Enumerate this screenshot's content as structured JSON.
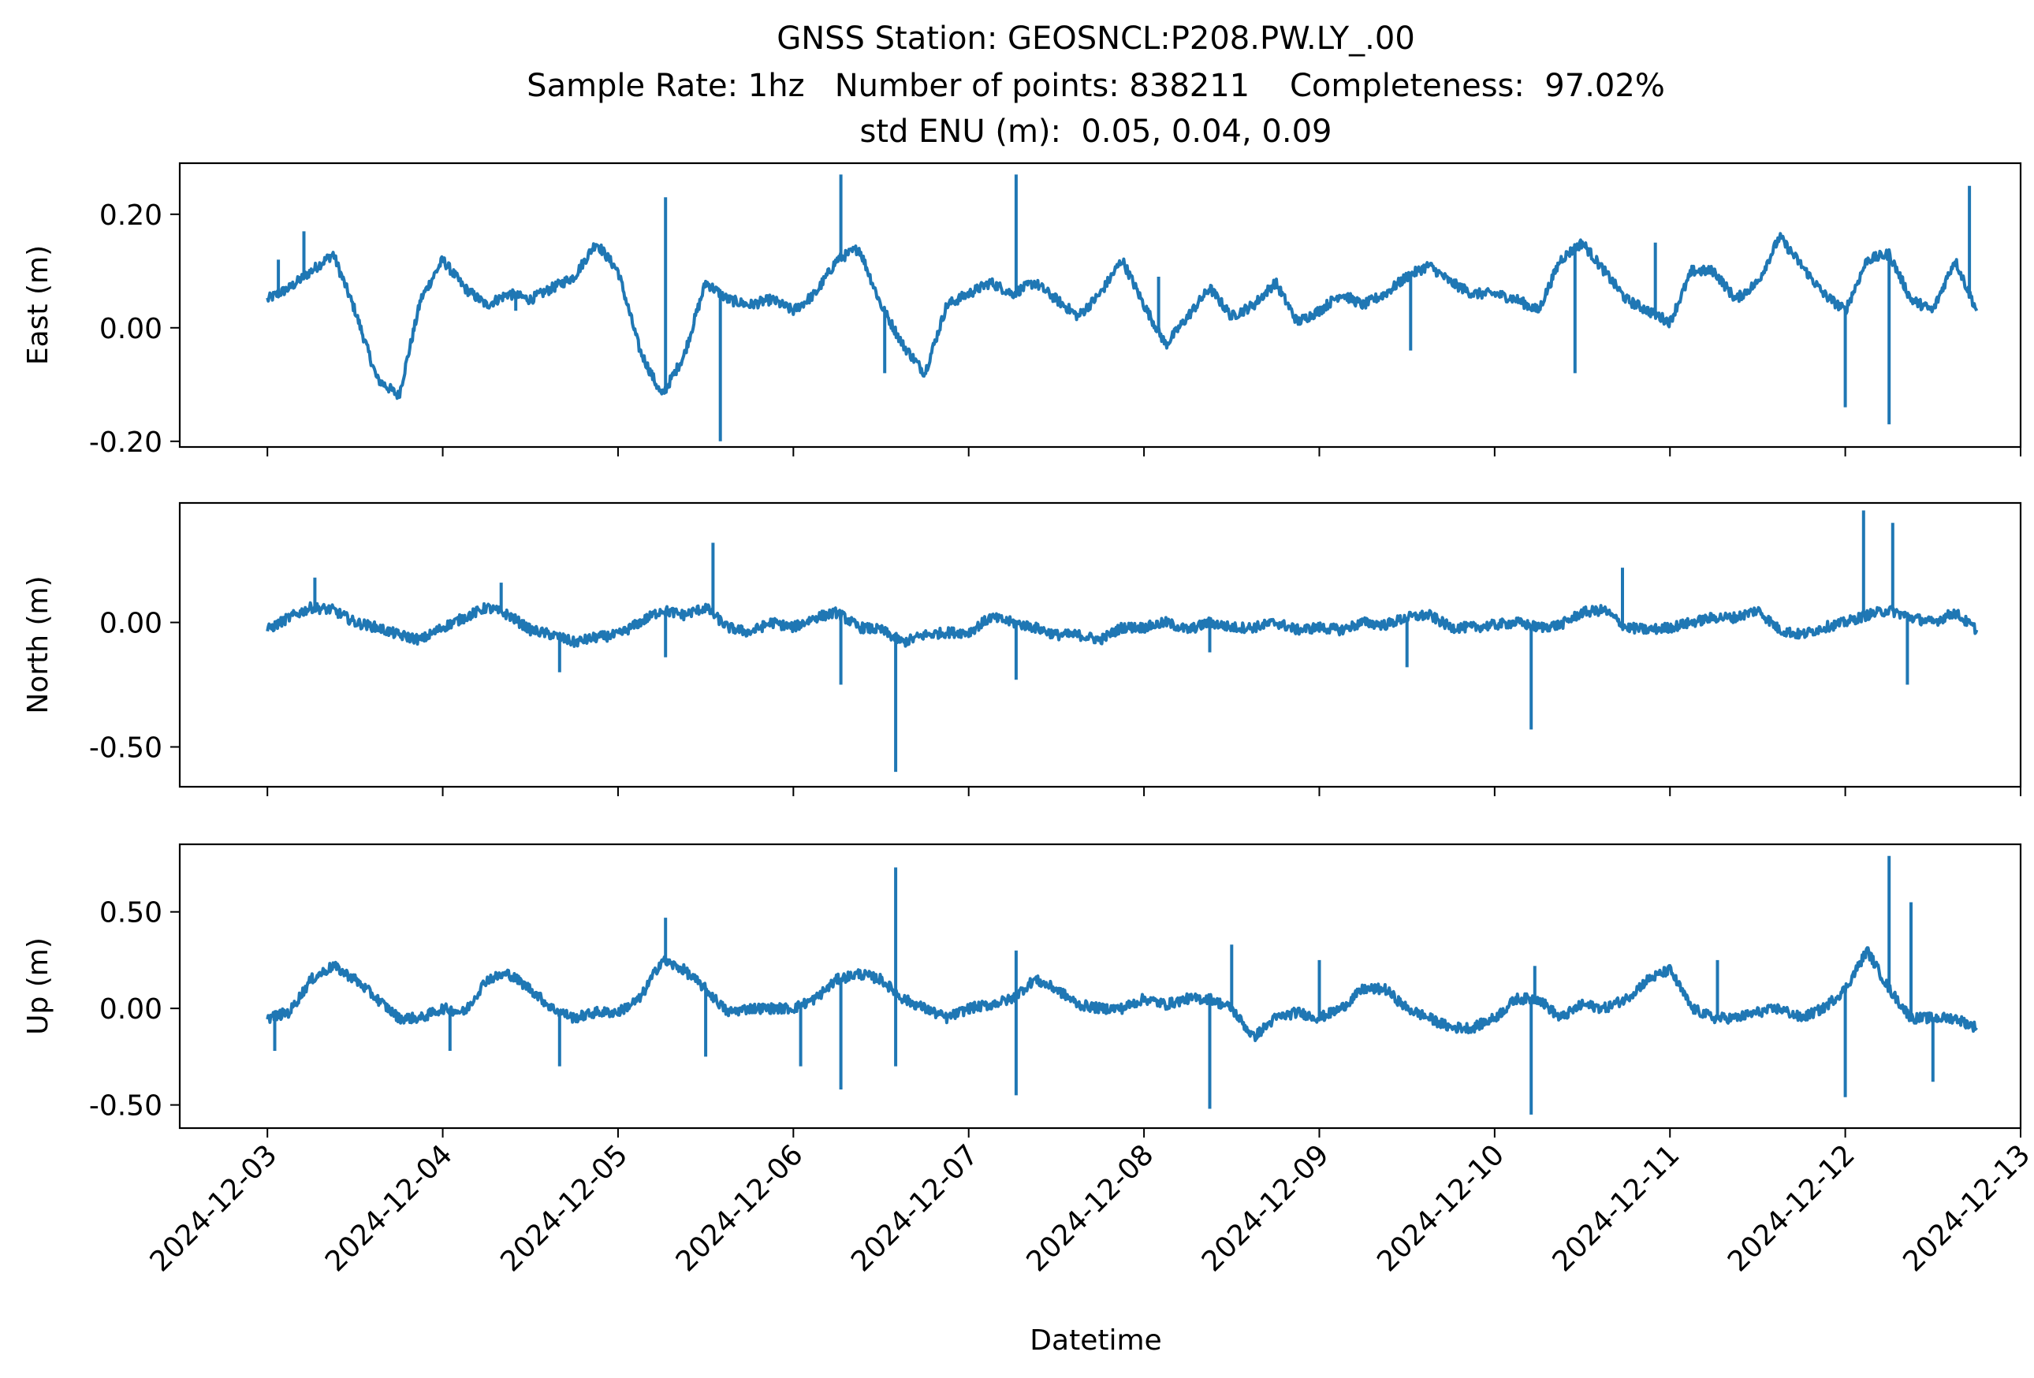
{
  "chart_data": {
    "type": "line",
    "title_lines": [
      "GNSS Station: GEOSNCL:P208.PW.LY_.00",
      "Sample Rate: 1hz   Number of points: 838211    Completeness:  97.02%",
      "std ENU (m):  0.05, 0.04, 0.09"
    ],
    "xlabel": "Datetime",
    "x_tick_labels": [
      "2024-12-03",
      "2024-12-04",
      "2024-12-05",
      "2024-12-06",
      "2024-12-07",
      "2024-12-08",
      "2024-12-09",
      "2024-12-10",
      "2024-12-11",
      "2024-12-12",
      "2024-12-13"
    ],
    "xlim": [
      "2024-12-02T12:00",
      "2024-12-13T00:00"
    ],
    "data_range": [
      "2024-12-03T00:00",
      "2024-12-12T18:00"
    ],
    "line_color": "#1f77b4",
    "grid": false,
    "legend": "none",
    "panels": [
      {
        "ylabel": "East (m)",
        "ylim": [
          -0.21,
          0.29
        ],
        "yticks": [
          0.2,
          0.0,
          -0.2
        ],
        "y_tick_labels": [
          "0.20",
          "0.00",
          "-0.20"
        ],
        "series": {
          "x": [
            "2024-12-03T00:00",
            "2024-12-03T03:00",
            "2024-12-03T06:00",
            "2024-12-03T09:00",
            "2024-12-03T12:00",
            "2024-12-03T15:00",
            "2024-12-03T18:00",
            "2024-12-03T21:00",
            "2024-12-04T00:00",
            "2024-12-04T03:00",
            "2024-12-04T06:00",
            "2024-12-04T09:00",
            "2024-12-04T12:00",
            "2024-12-04T15:00",
            "2024-12-04T18:00",
            "2024-12-04T21:00",
            "2024-12-05T00:00",
            "2024-12-05T03:00",
            "2024-12-05T06:00",
            "2024-12-05T09:00",
            "2024-12-05T12:00",
            "2024-12-05T15:00",
            "2024-12-05T18:00",
            "2024-12-05T21:00",
            "2024-12-06T00:00",
            "2024-12-06T03:00",
            "2024-12-06T06:00",
            "2024-12-06T09:00",
            "2024-12-06T12:00",
            "2024-12-06T15:00",
            "2024-12-06T18:00",
            "2024-12-06T21:00",
            "2024-12-07T00:00",
            "2024-12-07T03:00",
            "2024-12-07T06:00",
            "2024-12-07T09:00",
            "2024-12-07T12:00",
            "2024-12-07T15:00",
            "2024-12-07T18:00",
            "2024-12-07T21:00",
            "2024-12-08T00:00",
            "2024-12-08T03:00",
            "2024-12-08T06:00",
            "2024-12-08T09:00",
            "2024-12-08T12:00",
            "2024-12-08T15:00",
            "2024-12-08T18:00",
            "2024-12-08T21:00",
            "2024-12-09T00:00",
            "2024-12-09T03:00",
            "2024-12-09T06:00",
            "2024-12-09T09:00",
            "2024-12-09T12:00",
            "2024-12-09T15:00",
            "2024-12-09T18:00",
            "2024-12-09T21:00",
            "2024-12-10T00:00",
            "2024-12-10T03:00",
            "2024-12-10T06:00",
            "2024-12-10T09:00",
            "2024-12-10T12:00",
            "2024-12-10T15:00",
            "2024-12-10T18:00",
            "2024-12-10T21:00",
            "2024-12-11T00:00",
            "2024-12-11T03:00",
            "2024-12-11T06:00",
            "2024-12-11T09:00",
            "2024-12-11T12:00",
            "2024-12-11T15:00",
            "2024-12-11T18:00",
            "2024-12-11T21:00",
            "2024-12-12T00:00",
            "2024-12-12T03:00",
            "2024-12-12T06:00",
            "2024-12-12T09:00",
            "2024-12-12T12:00",
            "2024-12-12T15:00",
            "2024-12-12T18:00"
          ],
          "y": [
            0.05,
            0.07,
            0.1,
            0.13,
            0.03,
            -0.09,
            -0.12,
            0.05,
            0.12,
            0.07,
            0.04,
            0.06,
            0.05,
            0.07,
            0.09,
            0.15,
            0.1,
            -0.04,
            -0.12,
            -0.05,
            0.08,
            0.05,
            0.04,
            0.05,
            0.03,
            0.06,
            0.12,
            0.14,
            0.04,
            -0.03,
            -0.08,
            0.04,
            0.06,
            0.08,
            0.06,
            0.08,
            0.05,
            0.02,
            0.06,
            0.12,
            0.04,
            -0.03,
            0.02,
            0.07,
            0.02,
            0.04,
            0.08,
            0.01,
            0.03,
            0.06,
            0.04,
            0.06,
            0.09,
            0.11,
            0.08,
            0.06,
            0.06,
            0.05,
            0.03,
            0.12,
            0.15,
            0.1,
            0.05,
            0.03,
            0.01,
            0.1,
            0.1,
            0.05,
            0.08,
            0.16,
            0.11,
            0.06,
            0.03,
            0.12,
            0.13,
            0.05,
            0.03,
            0.12,
            0.03
          ],
          "spikes": [
            [
              "2024-12-03T01:30",
              0.12
            ],
            [
              "2024-12-03T05:00",
              0.17
            ],
            [
              "2024-12-04T10:00",
              0.03
            ],
            [
              "2024-12-05T06:30",
              0.23
            ],
            [
              "2024-12-05T14:00",
              -0.2
            ],
            [
              "2024-12-06T06:30",
              0.27
            ],
            [
              "2024-12-06T12:30",
              -0.08
            ],
            [
              "2024-12-07T06:30",
              0.27
            ],
            [
              "2024-12-08T02:00",
              0.09
            ],
            [
              "2024-12-09T12:30",
              -0.04
            ],
            [
              "2024-12-10T11:00",
              -0.08
            ],
            [
              "2024-12-10T22:00",
              0.15
            ],
            [
              "2024-12-12T00:00",
              -0.14
            ],
            [
              "2024-12-12T06:00",
              -0.17
            ],
            [
              "2024-12-12T17:00",
              0.25
            ]
          ]
        }
      },
      {
        "ylabel": "North (m)",
        "ylim": [
          -0.66,
          0.48
        ],
        "yticks": [
          0.0,
          -0.5
        ],
        "y_tick_labels": [
          "0.00",
          "-0.50"
        ],
        "series": {
          "x": [
            "2024-12-03T00:00",
            "2024-12-03T03:00",
            "2024-12-03T06:00",
            "2024-12-03T09:00",
            "2024-12-03T12:00",
            "2024-12-03T15:00",
            "2024-12-03T18:00",
            "2024-12-03T21:00",
            "2024-12-04T00:00",
            "2024-12-04T03:00",
            "2024-12-04T06:00",
            "2024-12-04T09:00",
            "2024-12-04T12:00",
            "2024-12-04T15:00",
            "2024-12-04T18:00",
            "2024-12-04T21:00",
            "2024-12-05T00:00",
            "2024-12-05T03:00",
            "2024-12-05T06:00",
            "2024-12-05T09:00",
            "2024-12-05T12:00",
            "2024-12-05T15:00",
            "2024-12-05T18:00",
            "2024-12-05T21:00",
            "2024-12-06T00:00",
            "2024-12-06T03:00",
            "2024-12-06T06:00",
            "2024-12-06T09:00",
            "2024-12-06T12:00",
            "2024-12-06T15:00",
            "2024-12-06T18:00",
            "2024-12-06T21:00",
            "2024-12-07T00:00",
            "2024-12-07T03:00",
            "2024-12-07T06:00",
            "2024-12-07T09:00",
            "2024-12-07T12:00",
            "2024-12-07T15:00",
            "2024-12-07T18:00",
            "2024-12-07T21:00",
            "2024-12-08T00:00",
            "2024-12-08T03:00",
            "2024-12-08T06:00",
            "2024-12-08T09:00",
            "2024-12-08T12:00",
            "2024-12-08T15:00",
            "2024-12-08T18:00",
            "2024-12-08T21:00",
            "2024-12-09T00:00",
            "2024-12-09T03:00",
            "2024-12-09T06:00",
            "2024-12-09T09:00",
            "2024-12-09T12:00",
            "2024-12-09T15:00",
            "2024-12-09T18:00",
            "2024-12-09T21:00",
            "2024-12-10T00:00",
            "2024-12-10T03:00",
            "2024-12-10T06:00",
            "2024-12-10T09:00",
            "2024-12-10T12:00",
            "2024-12-10T15:00",
            "2024-12-10T18:00",
            "2024-12-10T21:00",
            "2024-12-11T00:00",
            "2024-12-11T03:00",
            "2024-12-11T06:00",
            "2024-12-11T09:00",
            "2024-12-11T12:00",
            "2024-12-11T15:00",
            "2024-12-11T18:00",
            "2024-12-11T21:00",
            "2024-12-12T00:00",
            "2024-12-12T03:00",
            "2024-12-12T06:00",
            "2024-12-12T09:00",
            "2024-12-12T12:00",
            "2024-12-12T15:00",
            "2024-12-12T18:00"
          ],
          "y": [
            -0.03,
            0.02,
            0.06,
            0.05,
            0.0,
            -0.02,
            -0.05,
            -0.07,
            -0.02,
            0.02,
            0.06,
            0.03,
            -0.03,
            -0.05,
            -0.08,
            -0.06,
            -0.05,
            0.0,
            0.05,
            0.03,
            0.06,
            -0.02,
            -0.04,
            0.0,
            -0.02,
            0.02,
            0.04,
            -0.02,
            -0.03,
            -0.08,
            -0.05,
            -0.04,
            -0.04,
            0.02,
            0.0,
            -0.02,
            -0.05,
            -0.05,
            -0.07,
            -0.02,
            -0.02,
            0.0,
            -0.03,
            0.0,
            -0.02,
            -0.02,
            0.0,
            -0.03,
            -0.02,
            -0.03,
            0.0,
            -0.01,
            0.02,
            0.03,
            -0.02,
            -0.02,
            -0.01,
            0.0,
            -0.02,
            -0.01,
            0.04,
            0.05,
            -0.02,
            -0.03,
            -0.02,
            0.0,
            0.02,
            0.02,
            0.05,
            -0.03,
            -0.05,
            -0.02,
            0.0,
            0.03,
            0.05,
            0.02,
            0.0,
            0.04,
            -0.03
          ],
          "spikes": [
            [
              "2024-12-03T06:30",
              0.18
            ],
            [
              "2024-12-04T08:00",
              0.16
            ],
            [
              "2024-12-04T16:00",
              -0.2
            ],
            [
              "2024-12-05T06:30",
              -0.14
            ],
            [
              "2024-12-05T13:00",
              0.32
            ],
            [
              "2024-12-06T06:30",
              -0.25
            ],
            [
              "2024-12-06T14:00",
              -0.6
            ],
            [
              "2024-12-07T06:30",
              -0.23
            ],
            [
              "2024-12-08T09:00",
              -0.12
            ],
            [
              "2024-12-09T12:00",
              -0.18
            ],
            [
              "2024-12-10T05:00",
              -0.43
            ],
            [
              "2024-12-10T17:30",
              0.22
            ],
            [
              "2024-12-12T02:30",
              0.45
            ],
            [
              "2024-12-12T06:30",
              0.4
            ],
            [
              "2024-12-12T08:30",
              -0.25
            ]
          ]
        }
      },
      {
        "ylabel": "Up (m)",
        "ylim": [
          -0.62,
          0.85
        ],
        "yticks": [
          0.5,
          0.0,
          -0.5
        ],
        "y_tick_labels": [
          "0.50",
          "0.00",
          "-0.50"
        ],
        "series": {
          "x": [
            "2024-12-03T00:00",
            "2024-12-03T03:00",
            "2024-12-03T06:00",
            "2024-12-03T09:00",
            "2024-12-03T12:00",
            "2024-12-03T15:00",
            "2024-12-03T18:00",
            "2024-12-03T21:00",
            "2024-12-04T00:00",
            "2024-12-04T03:00",
            "2024-12-04T06:00",
            "2024-12-04T09:00",
            "2024-12-04T12:00",
            "2024-12-04T15:00",
            "2024-12-04T18:00",
            "2024-12-04T21:00",
            "2024-12-05T00:00",
            "2024-12-05T03:00",
            "2024-12-05T06:00",
            "2024-12-05T09:00",
            "2024-12-05T12:00",
            "2024-12-05T15:00",
            "2024-12-05T18:00",
            "2024-12-05T21:00",
            "2024-12-06T00:00",
            "2024-12-06T03:00",
            "2024-12-06T06:00",
            "2024-12-06T09:00",
            "2024-12-06T12:00",
            "2024-12-06T15:00",
            "2024-12-06T18:00",
            "2024-12-06T21:00",
            "2024-12-07T00:00",
            "2024-12-07T03:00",
            "2024-12-07T06:00",
            "2024-12-07T09:00",
            "2024-12-07T12:00",
            "2024-12-07T15:00",
            "2024-12-07T18:00",
            "2024-12-07T21:00",
            "2024-12-08T00:00",
            "2024-12-08T03:00",
            "2024-12-08T06:00",
            "2024-12-08T09:00",
            "2024-12-08T12:00",
            "2024-12-08T15:00",
            "2024-12-08T18:00",
            "2024-12-08T21:00",
            "2024-12-09T00:00",
            "2024-12-09T03:00",
            "2024-12-09T06:00",
            "2024-12-09T09:00",
            "2024-12-09T12:00",
            "2024-12-09T15:00",
            "2024-12-09T18:00",
            "2024-12-09T21:00",
            "2024-12-10T00:00",
            "2024-12-10T03:00",
            "2024-12-10T06:00",
            "2024-12-10T09:00",
            "2024-12-10T12:00",
            "2024-12-10T15:00",
            "2024-12-10T18:00",
            "2024-12-10T21:00",
            "2024-12-11T00:00",
            "2024-12-11T03:00",
            "2024-12-11T06:00",
            "2024-12-11T09:00",
            "2024-12-11T12:00",
            "2024-12-11T15:00",
            "2024-12-11T18:00",
            "2024-12-11T21:00",
            "2024-12-12T00:00",
            "2024-12-12T03:00",
            "2024-12-12T06:00",
            "2024-12-12T09:00",
            "2024-12-12T12:00",
            "2024-12-12T15:00",
            "2024-12-12T18:00"
          ],
          "y": [
            -0.05,
            -0.02,
            0.15,
            0.22,
            0.15,
            0.05,
            -0.05,
            -0.05,
            0.0,
            -0.02,
            0.15,
            0.18,
            0.1,
            0.0,
            -0.05,
            -0.02,
            -0.02,
            0.05,
            0.25,
            0.2,
            0.1,
            -0.02,
            0.0,
            0.0,
            0.0,
            0.05,
            0.15,
            0.18,
            0.15,
            0.05,
            0.0,
            -0.05,
            0.0,
            0.02,
            0.05,
            0.15,
            0.1,
            0.02,
            0.0,
            0.0,
            0.05,
            0.02,
            0.05,
            0.05,
            0.0,
            -0.15,
            -0.05,
            -0.02,
            -0.05,
            0.0,
            0.1,
            0.1,
            0.0,
            -0.05,
            -0.1,
            -0.1,
            -0.05,
            0.05,
            0.05,
            -0.05,
            0.02,
            0.0,
            0.05,
            0.15,
            0.2,
            0.0,
            -0.05,
            -0.05,
            -0.02,
            0.0,
            -0.05,
            0.0,
            0.1,
            0.3,
            0.1,
            -0.05,
            -0.05,
            -0.05,
            -0.1
          ],
          "spikes": [
            [
              "2024-12-03T01:00",
              -0.22
            ],
            [
              "2024-12-04T01:00",
              -0.22
            ],
            [
              "2024-12-04T16:00",
              -0.3
            ],
            [
              "2024-12-05T06:30",
              0.47
            ],
            [
              "2024-12-05T12:00",
              -0.25
            ],
            [
              "2024-12-06T01:00",
              -0.3
            ],
            [
              "2024-12-06T06:30",
              -0.42
            ],
            [
              "2024-12-06T14:00",
              0.73
            ],
            [
              "2024-12-06T14:00",
              -0.3
            ],
            [
              "2024-12-07T06:30",
              0.3
            ],
            [
              "2024-12-07T06:30",
              -0.45
            ],
            [
              "2024-12-08T09:00",
              -0.52
            ],
            [
              "2024-12-08T12:00",
              0.33
            ],
            [
              "2024-12-09T00:00",
              0.25
            ],
            [
              "2024-12-10T05:00",
              -0.55
            ],
            [
              "2024-12-10T05:30",
              0.22
            ],
            [
              "2024-12-11T06:30",
              0.25
            ],
            [
              "2024-12-12T00:00",
              -0.46
            ],
            [
              "2024-12-12T06:00",
              0.79
            ],
            [
              "2024-12-12T09:00",
              0.55
            ],
            [
              "2024-12-12T12:00",
              -0.38
            ]
          ]
        }
      }
    ]
  }
}
